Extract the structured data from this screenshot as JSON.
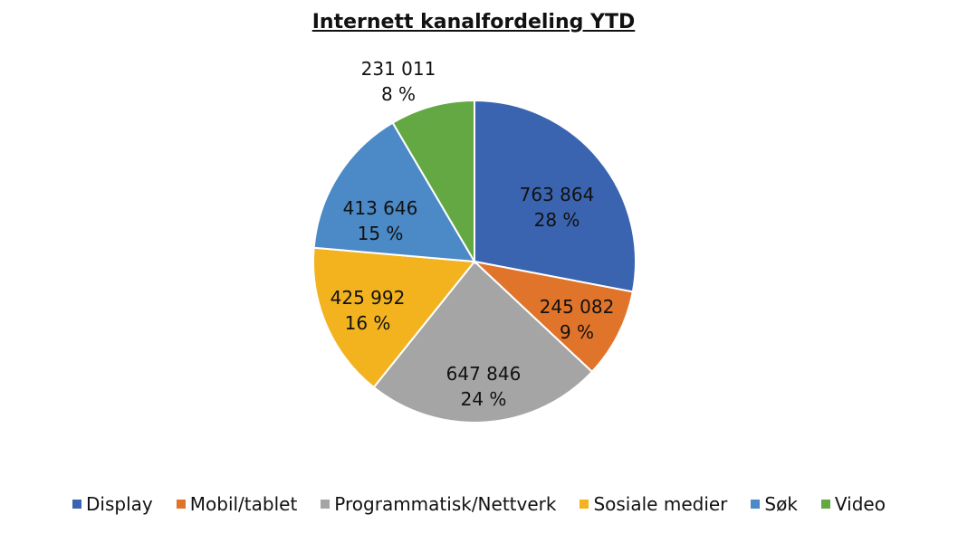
{
  "chart_data": {
    "type": "pie",
    "title": "Internett kanalfordeling YTD",
    "slices": [
      {
        "label": "Display",
        "value": 763864,
        "value_label": "763 864",
        "percent_label": "28 %",
        "color": "#3b64b0"
      },
      {
        "label": "Mobil/tablet",
        "value": 245082,
        "value_label": "245 082",
        "percent_label": "9 %",
        "color": "#e0742b"
      },
      {
        "label": "Programmatisk/Nettverk",
        "value": 647846,
        "value_label": "647 846",
        "percent_label": "24 %",
        "color": "#a5a5a5"
      },
      {
        "label": "Sosiale medier",
        "value": 425992,
        "value_label": "425 992",
        "percent_label": "16 %",
        "color": "#f2b31f"
      },
      {
        "label": "Søk",
        "value": 413646,
        "value_label": "413 646",
        "percent_label": "15 %",
        "color": "#4b8ac6"
      },
      {
        "label": "Video",
        "value": 231011,
        "value_label": "231 011",
        "percent_label": "8 %",
        "color": "#64a844"
      }
    ],
    "legend_position": "bottom"
  }
}
